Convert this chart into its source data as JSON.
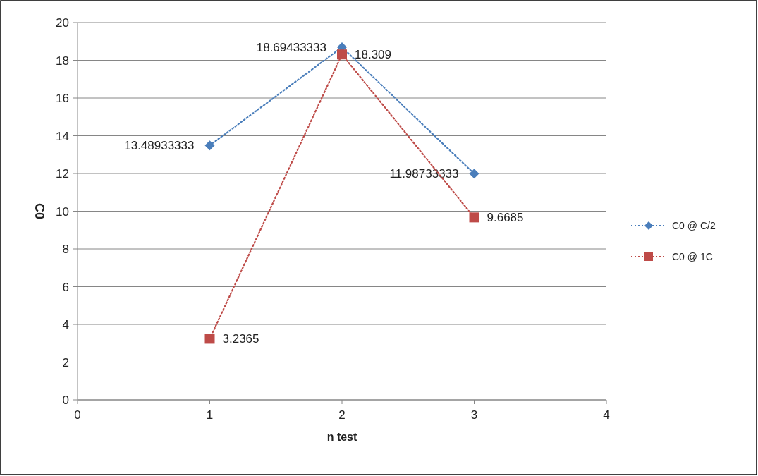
{
  "chart_data": {
    "type": "line",
    "xlabel": "n test",
    "ylabel": "C0",
    "x": [
      1,
      2,
      3
    ],
    "series": [
      {
        "name": "C0 @ C/2",
        "color": "#4a7ebb",
        "marker": "diamond",
        "values": [
          13.48933333,
          18.69433333,
          11.98733333
        ]
      },
      {
        "name": "C0 @ 1C",
        "color": "#be4b48",
        "marker": "square",
        "values": [
          3.2365,
          18.309,
          9.6685
        ]
      }
    ],
    "xlim": [
      0,
      4
    ],
    "xticks": [
      0,
      1,
      2,
      3,
      4
    ],
    "ylim": [
      0,
      20
    ],
    "yticks": [
      0,
      2,
      4,
      6,
      8,
      10,
      12,
      14,
      16,
      18,
      20
    ],
    "grid": "y",
    "legend": "right",
    "line_style": "dotted",
    "data_labels": true
  }
}
